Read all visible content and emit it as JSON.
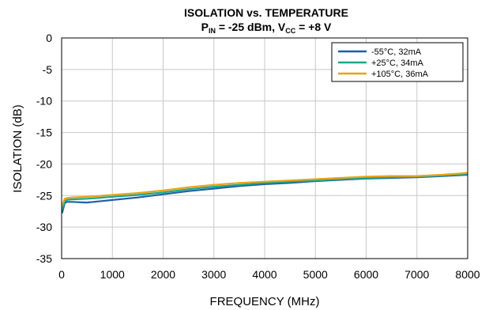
{
  "chart_data": {
    "type": "line",
    "title_line1": "ISOLATION vs. TEMPERATURE",
    "title_line2": {
      "p": "P",
      "p_sub": "IN",
      "mid": " = -25 dBm, V",
      "v_sub": "CC",
      "end": " = +8 V"
    },
    "xlabel": "FREQUENCY (MHz)",
    "ylabel": "ISOLATION (dB)",
    "xlim": [
      0,
      8000
    ],
    "ylim": [
      -35,
      0
    ],
    "xticks": [
      0,
      1000,
      2000,
      3000,
      4000,
      5000,
      6000,
      7000,
      8000
    ],
    "yticks": [
      0,
      -5,
      -10,
      -15,
      -20,
      -25,
      -30,
      -35
    ],
    "grid": true,
    "legend_position": "top-right",
    "series": [
      {
        "name": "-55°C, 32mA",
        "color": "#1f5fa6",
        "x": [
          10,
          60,
          100,
          200,
          500,
          1000,
          1500,
          2000,
          2500,
          3000,
          3500,
          4000,
          4500,
          5000,
          5500,
          6000,
          6500,
          7000,
          7500,
          8000
        ],
        "values": [
          -27.8,
          -26.2,
          -26.0,
          -26.0,
          -26.1,
          -25.7,
          -25.3,
          -24.8,
          -24.3,
          -23.9,
          -23.5,
          -23.2,
          -23.0,
          -22.7,
          -22.5,
          -22.3,
          -22.2,
          -22.1,
          -21.9,
          -21.7
        ]
      },
      {
        "name": "+25°C, 34mA",
        "color": "#1aa88a",
        "x": [
          10,
          60,
          100,
          200,
          500,
          1000,
          1500,
          2000,
          2500,
          3000,
          3500,
          4000,
          4500,
          5000,
          5500,
          6000,
          6500,
          7000,
          7500,
          8000
        ],
        "values": [
          -27.2,
          -25.9,
          -25.7,
          -25.6,
          -25.5,
          -25.2,
          -24.9,
          -24.5,
          -24.0,
          -23.6,
          -23.3,
          -23.0,
          -22.8,
          -22.6,
          -22.4,
          -22.2,
          -22.1,
          -22.0,
          -21.8,
          -21.6
        ]
      },
      {
        "name": "+105°C, 36mA",
        "color": "#e8a317",
        "x": [
          10,
          60,
          100,
          200,
          500,
          1000,
          1500,
          2000,
          2500,
          3000,
          3500,
          4000,
          4500,
          5000,
          5500,
          6000,
          6500,
          7000,
          7500,
          8000
        ],
        "values": [
          -26.6,
          -25.5,
          -25.4,
          -25.3,
          -25.2,
          -24.9,
          -24.6,
          -24.2,
          -23.7,
          -23.3,
          -23.0,
          -22.8,
          -22.6,
          -22.4,
          -22.2,
          -22.0,
          -21.9,
          -21.9,
          -21.7,
          -21.4
        ]
      }
    ]
  }
}
